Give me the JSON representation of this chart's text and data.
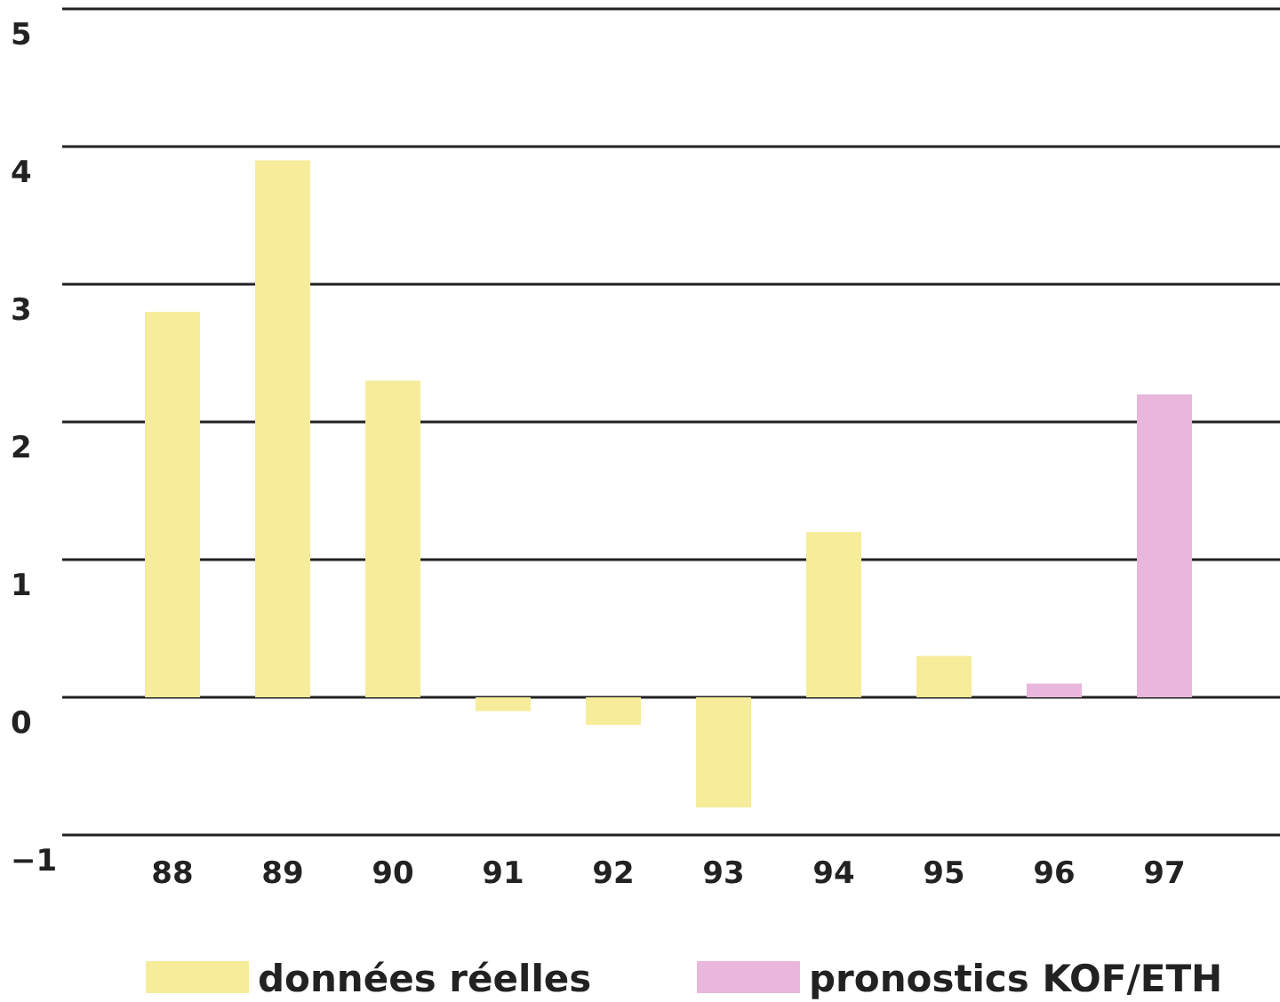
{
  "chart_data": {
    "type": "bar",
    "categories": [
      "88",
      "89",
      "90",
      "91",
      "92",
      "93",
      "94",
      "95",
      "96",
      "97"
    ],
    "series": [
      {
        "name": "données réelles",
        "color": "#f6ec9a",
        "values": [
          2.8,
          3.9,
          2.3,
          -0.1,
          -0.2,
          -0.8,
          1.2,
          0.3,
          null,
          null
        ]
      },
      {
        "name": "pronostics KOF/ETH",
        "color": "#e9b6dc",
        "values": [
          null,
          null,
          null,
          null,
          null,
          null,
          null,
          null,
          0.1,
          2.2
        ]
      }
    ],
    "ylim": [
      -1,
      5
    ],
    "yticks": [
      -1,
      0,
      1,
      2,
      3,
      4,
      5
    ],
    "grid": "y",
    "legend": "bottom"
  }
}
